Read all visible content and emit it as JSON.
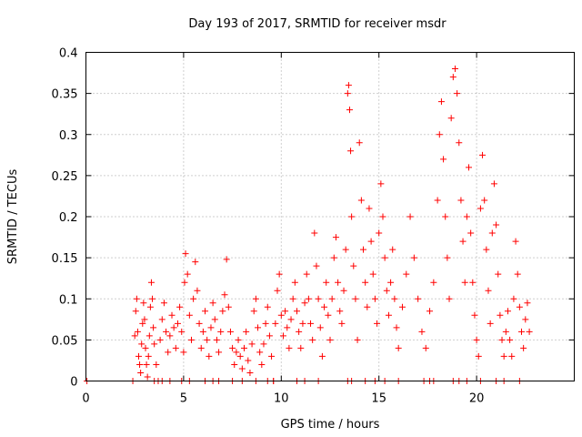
{
  "chart_data": {
    "type": "scatter",
    "title": "Day 193 of 2017, SRMTID for receiver msdr",
    "xlabel": "GPS time / hours",
    "ylabel": "SRMTID / TECUs",
    "xlim": [
      0,
      25
    ],
    "ylim": [
      0,
      0.4
    ],
    "x_ticks": [
      0,
      5,
      10,
      15,
      20
    ],
    "x_tick_labels": [
      "0",
      "5",
      "10",
      "15",
      "20"
    ],
    "y_ticks": [
      0,
      0.05,
      0.1,
      0.15,
      0.2,
      0.25,
      0.3,
      0.35,
      0.4
    ],
    "y_tick_labels": [
      "0",
      "0.05",
      "0.1",
      "0.15",
      "0.2",
      "0.25",
      "0.3",
      "0.35",
      "0.4"
    ],
    "grid": true,
    "marker": "plus",
    "series": [
      {
        "name": "SRMTID",
        "color": "#ff0000",
        "points": [
          [
            0.05,
            0.0
          ],
          [
            2.4,
            0.0
          ],
          [
            2.5,
            0.055
          ],
          [
            2.55,
            0.085
          ],
          [
            2.6,
            0.1
          ],
          [
            2.65,
            0.06
          ],
          [
            2.7,
            0.03
          ],
          [
            2.75,
            0.02
          ],
          [
            2.8,
            0.01
          ],
          [
            2.85,
            0.045
          ],
          [
            2.9,
            0.07
          ],
          [
            2.95,
            0.095
          ],
          [
            3.0,
            0.075
          ],
          [
            3.05,
            0.04
          ],
          [
            3.1,
            0.02
          ],
          [
            3.15,
            0.005
          ],
          [
            3.2,
            0.03
          ],
          [
            3.25,
            0.055
          ],
          [
            3.3,
            0.09
          ],
          [
            3.35,
            0.12
          ],
          [
            3.4,
            0.1
          ],
          [
            3.45,
            0.065
          ],
          [
            3.5,
            0.045
          ],
          [
            3.6,
            0.02
          ],
          [
            3.7,
            0.0
          ],
          [
            3.8,
            0.05
          ],
          [
            3.9,
            0.075
          ],
          [
            4.0,
            0.095
          ],
          [
            4.1,
            0.06
          ],
          [
            4.2,
            0.035
          ],
          [
            4.3,
            0.055
          ],
          [
            4.4,
            0.08
          ],
          [
            4.5,
            0.065
          ],
          [
            4.6,
            0.04
          ],
          [
            4.7,
            0.07
          ],
          [
            4.8,
            0.09
          ],
          [
            4.9,
            0.06
          ],
          [
            5.0,
            0.035
          ],
          [
            5.05,
            0.12
          ],
          [
            5.1,
            0.155
          ],
          [
            5.2,
            0.13
          ],
          [
            5.3,
            0.08
          ],
          [
            5.4,
            0.05
          ],
          [
            5.5,
            0.1
          ],
          [
            5.6,
            0.145
          ],
          [
            5.7,
            0.11
          ],
          [
            5.8,
            0.07
          ],
          [
            5.9,
            0.04
          ],
          [
            6.0,
            0.06
          ],
          [
            6.1,
            0.085
          ],
          [
            6.2,
            0.05
          ],
          [
            6.3,
            0.03
          ],
          [
            6.4,
            0.065
          ],
          [
            6.5,
            0.095
          ],
          [
            6.6,
            0.075
          ],
          [
            6.7,
            0.05
          ],
          [
            6.8,
            0.035
          ],
          [
            6.9,
            0.06
          ],
          [
            7.0,
            0.085
          ],
          [
            7.1,
            0.105
          ],
          [
            7.2,
            0.148
          ],
          [
            7.3,
            0.09
          ],
          [
            7.4,
            0.06
          ],
          [
            7.5,
            0.04
          ],
          [
            7.6,
            0.02
          ],
          [
            7.7,
            0.035
          ],
          [
            7.8,
            0.05
          ],
          [
            7.9,
            0.03
          ],
          [
            8.0,
            0.015
          ],
          [
            8.1,
            0.04
          ],
          [
            8.2,
            0.06
          ],
          [
            8.3,
            0.025
          ],
          [
            8.4,
            0.01
          ],
          [
            8.5,
            0.045
          ],
          [
            8.6,
            0.085
          ],
          [
            8.7,
            0.1
          ],
          [
            8.8,
            0.065
          ],
          [
            8.9,
            0.035
          ],
          [
            9.0,
            0.02
          ],
          [
            9.1,
            0.045
          ],
          [
            9.2,
            0.07
          ],
          [
            9.3,
            0.09
          ],
          [
            9.4,
            0.055
          ],
          [
            9.5,
            0.03
          ],
          [
            9.6,
            0.0
          ],
          [
            9.7,
            0.07
          ],
          [
            9.8,
            0.11
          ],
          [
            9.9,
            0.13
          ],
          [
            10.0,
            0.08
          ],
          [
            10.1,
            0.055
          ],
          [
            10.2,
            0.085
          ],
          [
            10.3,
            0.065
          ],
          [
            10.4,
            0.04
          ],
          [
            10.5,
            0.075
          ],
          [
            10.6,
            0.1
          ],
          [
            10.7,
            0.12
          ],
          [
            10.8,
            0.085
          ],
          [
            10.9,
            0.06
          ],
          [
            11.0,
            0.04
          ],
          [
            11.1,
            0.07
          ],
          [
            11.2,
            0.095
          ],
          [
            11.3,
            0.13
          ],
          [
            11.4,
            0.1
          ],
          [
            11.5,
            0.07
          ],
          [
            11.6,
            0.05
          ],
          [
            11.7,
            0.18
          ],
          [
            11.8,
            0.14
          ],
          [
            11.9,
            0.1
          ],
          [
            12.0,
            0.065
          ],
          [
            12.1,
            0.03
          ],
          [
            12.2,
            0.09
          ],
          [
            12.3,
            0.12
          ],
          [
            12.4,
            0.08
          ],
          [
            12.5,
            0.05
          ],
          [
            12.6,
            0.1
          ],
          [
            12.7,
            0.15
          ],
          [
            12.8,
            0.175
          ],
          [
            12.9,
            0.12
          ],
          [
            13.0,
            0.085
          ],
          [
            13.1,
            0.07
          ],
          [
            13.2,
            0.11
          ],
          [
            13.3,
            0.16
          ],
          [
            13.4,
            0.35
          ],
          [
            13.45,
            0.36
          ],
          [
            13.5,
            0.33
          ],
          [
            13.55,
            0.28
          ],
          [
            13.6,
            0.2
          ],
          [
            13.7,
            0.14
          ],
          [
            13.8,
            0.1
          ],
          [
            13.9,
            0.05
          ],
          [
            14.0,
            0.29
          ],
          [
            14.1,
            0.22
          ],
          [
            14.2,
            0.16
          ],
          [
            14.3,
            0.12
          ],
          [
            14.4,
            0.09
          ],
          [
            14.5,
            0.21
          ],
          [
            14.6,
            0.17
          ],
          [
            14.7,
            0.13
          ],
          [
            14.8,
            0.1
          ],
          [
            14.9,
            0.07
          ],
          [
            15.0,
            0.18
          ],
          [
            15.1,
            0.24
          ],
          [
            15.2,
            0.2
          ],
          [
            15.3,
            0.15
          ],
          [
            15.4,
            0.11
          ],
          [
            15.5,
            0.08
          ],
          [
            15.6,
            0.12
          ],
          [
            15.7,
            0.16
          ],
          [
            15.8,
            0.1
          ],
          [
            15.9,
            0.065
          ],
          [
            16.0,
            0.04
          ],
          [
            16.2,
            0.09
          ],
          [
            16.4,
            0.13
          ],
          [
            16.6,
            0.2
          ],
          [
            16.8,
            0.15
          ],
          [
            17.0,
            0.1
          ],
          [
            17.2,
            0.06
          ],
          [
            17.4,
            0.04
          ],
          [
            17.6,
            0.085
          ],
          [
            17.8,
            0.12
          ],
          [
            18.0,
            0.22
          ],
          [
            18.1,
            0.3
          ],
          [
            18.2,
            0.34
          ],
          [
            18.3,
            0.27
          ],
          [
            18.4,
            0.2
          ],
          [
            18.5,
            0.15
          ],
          [
            18.6,
            0.1
          ],
          [
            18.7,
            0.32
          ],
          [
            18.8,
            0.37
          ],
          [
            18.9,
            0.38
          ],
          [
            19.0,
            0.35
          ],
          [
            19.1,
            0.29
          ],
          [
            19.2,
            0.22
          ],
          [
            19.3,
            0.17
          ],
          [
            19.4,
            0.12
          ],
          [
            19.5,
            0.2
          ],
          [
            19.6,
            0.26
          ],
          [
            19.7,
            0.18
          ],
          [
            19.8,
            0.12
          ],
          [
            19.9,
            0.08
          ],
          [
            20.0,
            0.05
          ],
          [
            20.1,
            0.03
          ],
          [
            20.2,
            0.21
          ],
          [
            20.3,
            0.275
          ],
          [
            20.4,
            0.22
          ],
          [
            20.5,
            0.16
          ],
          [
            20.6,
            0.11
          ],
          [
            20.7,
            0.07
          ],
          [
            20.8,
            0.18
          ],
          [
            20.9,
            0.24
          ],
          [
            21.0,
            0.19
          ],
          [
            21.1,
            0.13
          ],
          [
            21.2,
            0.08
          ],
          [
            21.3,
            0.05
          ],
          [
            21.4,
            0.03
          ],
          [
            21.5,
            0.06
          ],
          [
            21.6,
            0.085
          ],
          [
            21.7,
            0.05
          ],
          [
            21.8,
            0.03
          ],
          [
            21.9,
            0.1
          ],
          [
            22.0,
            0.17
          ],
          [
            22.1,
            0.13
          ],
          [
            22.2,
            0.09
          ],
          [
            22.3,
            0.06
          ],
          [
            22.4,
            0.04
          ],
          [
            22.5,
            0.075
          ],
          [
            22.6,
            0.095
          ],
          [
            22.7,
            0.06
          ]
        ],
        "zero_markers": [
          3.5,
          3.9,
          4.3,
          4.9,
          5.3,
          6.1,
          6.5,
          6.8,
          7.5,
          8.0,
          8.7,
          9.3,
          9.6,
          10.8,
          11.2,
          11.9,
          13.4,
          13.6,
          14.3,
          14.8,
          15.3,
          16.0,
          17.3,
          17.6,
          17.8,
          18.8,
          19.1,
          19.5,
          20.2,
          21.0,
          21.4,
          22.2
        ]
      }
    ]
  }
}
